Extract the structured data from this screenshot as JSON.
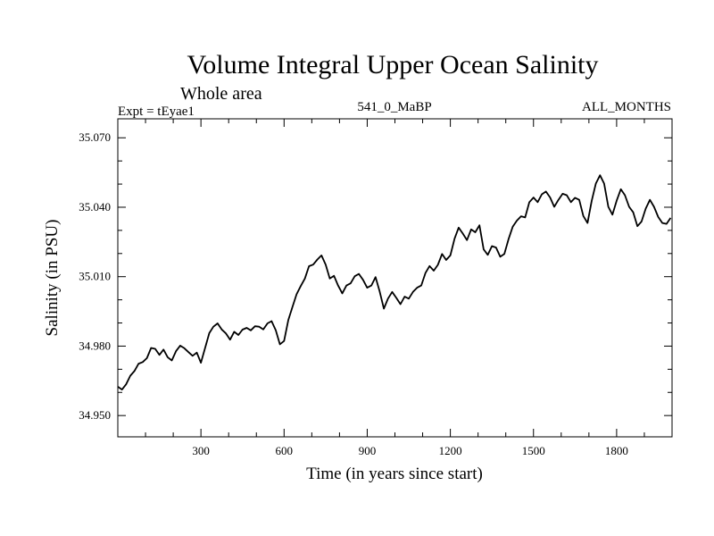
{
  "chart_data": {
    "type": "line",
    "title": "Volume Integral Upper Ocean Salinity",
    "subtitle": "Whole area",
    "experiment_label": "Expt = tEyae1",
    "period_label": "541_0_MaBP",
    "months_label": "ALL_MONTHS",
    "xlabel": "Time (in years since start)",
    "ylabel": "Salinity (in PSU)",
    "xlim": [
      0,
      2000
    ],
    "ylim": [
      34.9408,
      35.0782
    ],
    "x_ticks": [
      300,
      600,
      900,
      1200,
      1500,
      1800
    ],
    "y_ticks": [
      "34.950",
      "34.980",
      "35.010",
      "35.040",
      "35.070"
    ],
    "series": [
      {
        "name": "Volume integral upper ocean salinity",
        "color": "#000000",
        "x": [
          0,
          15,
          30,
          45,
          60,
          75,
          90,
          105,
          120,
          135,
          150,
          165,
          180,
          195,
          210,
          225,
          240,
          255,
          270,
          285,
          300,
          315,
          330,
          345,
          360,
          375,
          390,
          405,
          420,
          435,
          450,
          465,
          480,
          495,
          510,
          525,
          540,
          555,
          570,
          585,
          600,
          615,
          630,
          645,
          660,
          675,
          690,
          705,
          720,
          735,
          750,
          765,
          780,
          795,
          810,
          825,
          840,
          855,
          870,
          885,
          900,
          915,
          930,
          945,
          960,
          975,
          990,
          1005,
          1020,
          1035,
          1050,
          1065,
          1080,
          1095,
          1110,
          1125,
          1140,
          1155,
          1170,
          1185,
          1200,
          1215,
          1230,
          1245,
          1260,
          1275,
          1290,
          1305,
          1320,
          1335,
          1350,
          1365,
          1380,
          1395,
          1410,
          1425,
          1440,
          1455,
          1470,
          1485,
          1500,
          1515,
          1530,
          1545,
          1560,
          1575,
          1590,
          1605,
          1620,
          1635,
          1650,
          1665,
          1680,
          1695,
          1710,
          1725,
          1740,
          1755,
          1770,
          1785,
          1800,
          1815,
          1830,
          1845,
          1860,
          1875,
          1890,
          1905,
          1920,
          1935,
          1950,
          1965,
          1980,
          1995
        ],
        "values": [
          34.9625,
          34.9612,
          34.9635,
          34.9672,
          34.9692,
          34.9724,
          34.9731,
          34.9748,
          34.9792,
          34.9788,
          34.9762,
          34.9785,
          34.9752,
          34.9738,
          34.9778,
          34.9802,
          34.9791,
          34.9774,
          34.9758,
          34.9772,
          34.9728,
          34.9792,
          34.9856,
          34.9884,
          34.9898,
          34.9872,
          34.9855,
          34.9828,
          34.9862,
          34.9848,
          34.9871,
          34.9879,
          34.9868,
          34.9886,
          34.9884,
          34.9872,
          34.9898,
          34.9908,
          34.9868,
          34.9808,
          34.9822,
          34.9912,
          34.9968,
          35.0024,
          35.0059,
          35.0092,
          35.0145,
          35.0152,
          35.0174,
          35.0192,
          35.0152,
          35.0092,
          35.0104,
          35.0062,
          35.0028,
          35.0062,
          35.0071,
          35.0102,
          35.0112,
          35.0086,
          35.0052,
          35.0062,
          35.0098,
          35.0036,
          34.9962,
          35.0005,
          35.0034,
          35.0008,
          34.9981,
          35.0014,
          35.0005,
          35.0034,
          35.0052,
          35.0062,
          35.0116,
          35.0146,
          35.0126,
          35.0151,
          35.0198,
          35.0172,
          35.0192,
          35.0264,
          35.0312,
          35.0286,
          35.0258,
          35.0304,
          35.0292,
          35.0322,
          35.0218,
          35.0194,
          35.0232,
          35.0226,
          35.0186,
          35.0198,
          35.0262,
          35.0316,
          35.0342,
          35.0361,
          35.0356,
          35.0422,
          35.0442,
          35.0422,
          35.0456,
          35.0468,
          35.0442,
          35.0402,
          35.0432,
          35.0458,
          35.0452,
          35.0422,
          35.0441,
          35.0432,
          35.0362,
          35.0332,
          35.0428,
          35.0502,
          35.0538,
          35.0502,
          35.0402,
          35.0368,
          35.0428,
          35.0478,
          35.0452,
          35.0402,
          35.0378,
          35.0318,
          35.0338,
          35.0394,
          35.0432,
          35.0402,
          35.0358,
          35.0332,
          35.0328,
          35.0354
        ]
      }
    ],
    "grid": false,
    "legend": "none"
  }
}
